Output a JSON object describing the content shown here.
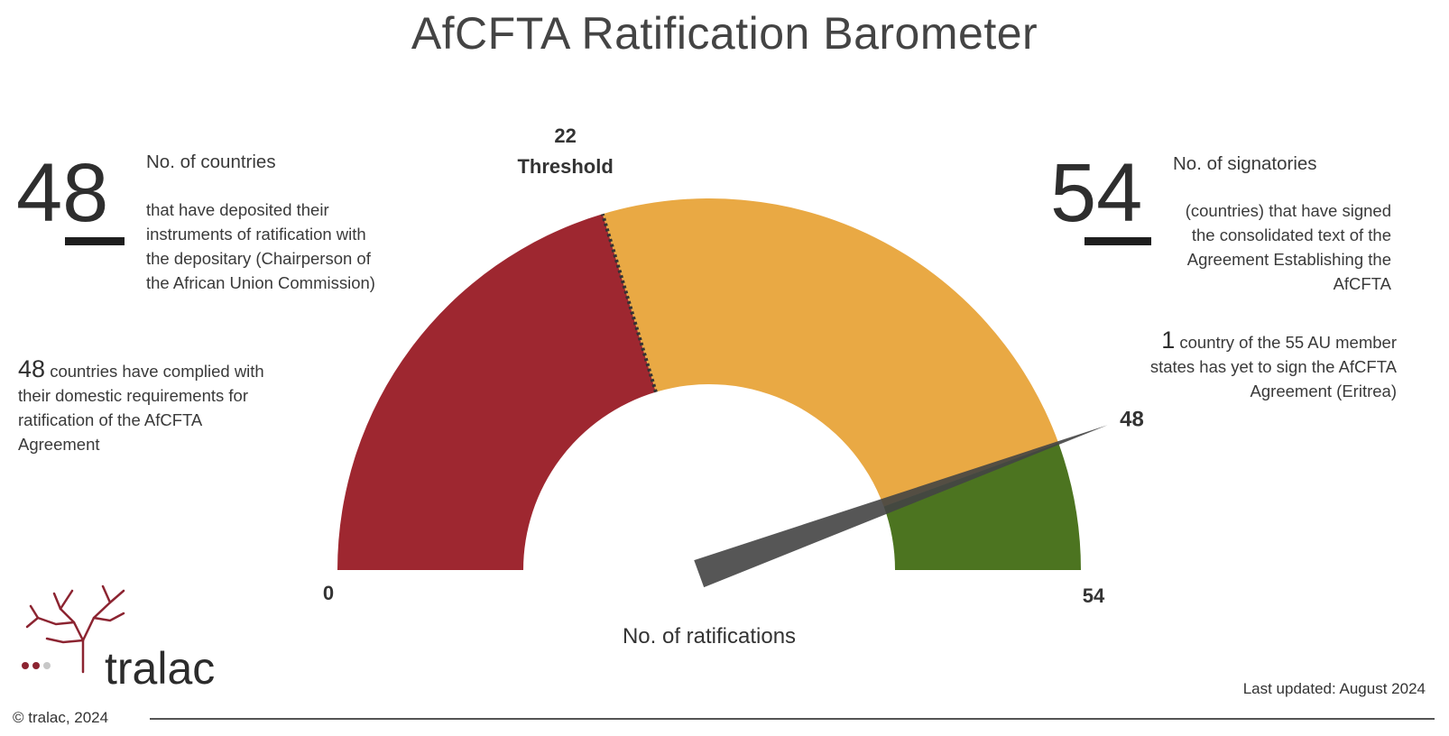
{
  "title": "AfCFTA Ratification Barometer",
  "left_stat": {
    "number": "48",
    "heading": "No. of countries",
    "body": [
      "that have deposited their",
      "instruments of ratification with",
      "the depositary (Chairperson of",
      "the African Union Commission)"
    ]
  },
  "left_note": {
    "number": "48",
    "first_line": "countries have complied with",
    "rest": [
      "their domestic requirements for",
      "ratification of the AfCFTA",
      "Agreement"
    ]
  },
  "right_stat": {
    "number": "54",
    "heading": "No. of signatories",
    "body": [
      "(countries) that have signed",
      "the consolidated text of the",
      "Agreement Establishing the",
      "AfCFTA"
    ]
  },
  "right_note": {
    "number": "1",
    "first_line": "country of the 55 AU member",
    "rest": [
      "states has yet to sign the AfCFTA",
      "Agreement (Eritrea)"
    ]
  },
  "chart_data": {
    "type": "gauge",
    "min": 0,
    "max": 54,
    "value": 48,
    "threshold": 22,
    "threshold_label": "Threshold",
    "xlabel": "No. of ratifications",
    "bands": [
      {
        "from": 0,
        "to": 22,
        "color": "#9e2730"
      },
      {
        "from": 22,
        "to": 48,
        "color": "#e9a944"
      },
      {
        "from": 48,
        "to": 54,
        "color": "#4c7420"
      }
    ],
    "needle_color": "#444444",
    "min_label": "0",
    "max_label": "54",
    "value_label": "48",
    "threshold_value_label": "22"
  },
  "footer": {
    "brand": "tralac",
    "copyright": "© tralac, 2024",
    "last_updated": "Last updated: August 2024"
  },
  "colors": {
    "brand": "#8c2431",
    "dot_light": "#c7c7c7"
  }
}
